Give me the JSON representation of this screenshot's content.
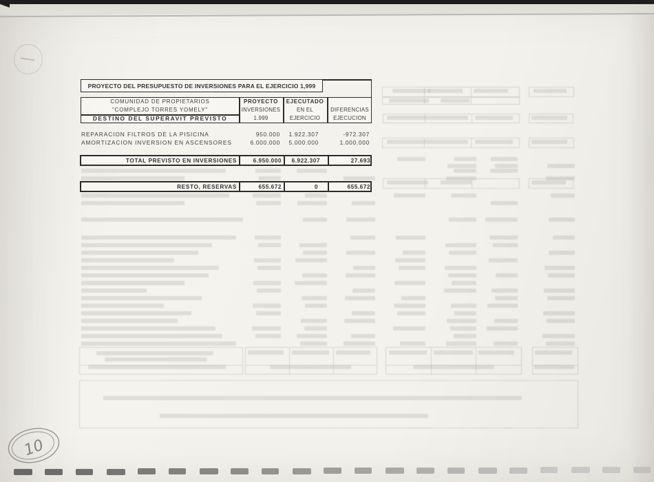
{
  "document": {
    "title": "PROYECTO DEL PRESUPUESTO DE INVERSIONES PARA EL EJERCICIO 1,999",
    "header": {
      "entity_lines": [
        "COMUNIDAD DE PROPIETARIOS",
        "\"COMPLEJO TORRES YOMELY\"",
        "DESTINO DEL SUPERAVIT PREVISTO"
      ],
      "columns": {
        "proyecto": [
          "PROYECTO",
          "INVERSIONES",
          "1.999"
        ],
        "ejecutado": [
          "EJECUTADO",
          "EN EL",
          "EJERCICIO"
        ],
        "diferencias": [
          "DIFERENCIAS",
          "EJECUCION"
        ]
      }
    },
    "rows": [
      {
        "label": "REPARACION FILTROS DE LA PISICINA",
        "proyecto": "950.000",
        "ejecutado": "1.922.307",
        "diferencias": "-972.307"
      },
      {
        "label": "AMORTIZACION INVERSION EN ASCENSORES",
        "proyecto": "6.000.000",
        "ejecutado": "5.000.000",
        "diferencias": "1.000.000"
      }
    ],
    "total": {
      "label": "TOTAL PREVISTO EN INVERSIONES",
      "proyecto": "6.950.000",
      "ejecutado": "6.922.307",
      "diferencias": "27.693"
    },
    "resto": {
      "label": "RESTO, RESERVAS",
      "proyecto": "655.672",
      "ejecutado": "0",
      "diferencias": "655.672"
    }
  },
  "annotations": {
    "page_number": "10"
  },
  "colors": {
    "paper": "#f1f0eb",
    "ink": "#2b2b2b",
    "ghost_ink": "#6e6e64",
    "scanner_edge": "#161616"
  }
}
